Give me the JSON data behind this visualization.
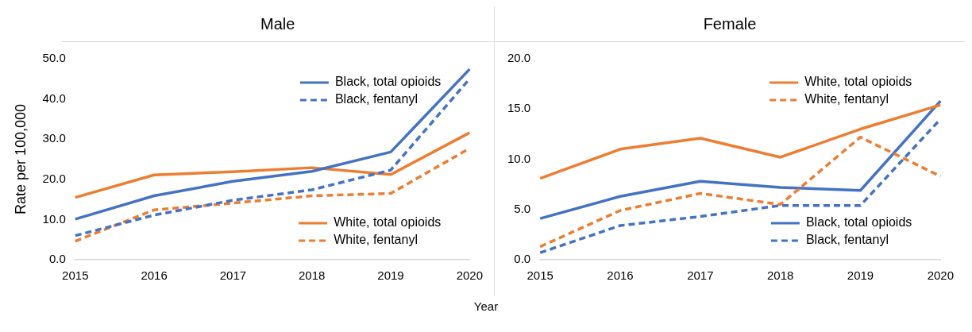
{
  "chart_data": [
    {
      "type": "line",
      "title": "Male",
      "xlabel": "Year",
      "ylabel": "Rate per 100,000",
      "categories": [
        "2015",
        "2016",
        "2017",
        "2018",
        "2019",
        "2020"
      ],
      "ylim": [
        0,
        50
      ],
      "yticks": [
        {
          "value": 0,
          "label": "0.0"
        },
        {
          "value": 10,
          "label": "10.0"
        },
        {
          "value": 20,
          "label": "20.0"
        },
        {
          "value": 30,
          "label": "30.0"
        },
        {
          "value": 40,
          "label": "40.0"
        },
        {
          "value": 50,
          "label": "50.0"
        }
      ],
      "grid": false,
      "legend": "right",
      "marker": "none",
      "series": [
        {
          "name": "Black, total opioids",
          "color": "#4472c4",
          "line_style": "solid",
          "values": [
            10.1,
            15.9,
            19.5,
            22.0,
            26.8,
            47.4
          ]
        },
        {
          "name": "Black, fentanyl",
          "color": "#4472c4",
          "line_style": "dashed",
          "values": [
            6.0,
            11.1,
            14.8,
            17.4,
            22.3,
            45.0
          ]
        },
        {
          "name": "White, total opioids",
          "color": "#ed7d31",
          "line_style": "solid",
          "values": [
            15.5,
            21.1,
            21.9,
            22.9,
            21.2,
            31.6
          ]
        },
        {
          "name": "White, fentanyl",
          "color": "#ed7d31",
          "line_style": "dashed",
          "values": [
            4.6,
            12.4,
            14.1,
            15.9,
            16.5,
            27.7
          ]
        }
      ]
    },
    {
      "type": "line",
      "title": "Female",
      "categories": [
        "2015",
        "2016",
        "2017",
        "2018",
        "2019",
        "2020"
      ],
      "ylim": [
        0,
        20
      ],
      "yticks": [
        {
          "value": 0,
          "label": "0.0"
        },
        {
          "value": 5,
          "label": "5.0"
        },
        {
          "value": 10,
          "label": "10.0"
        },
        {
          "value": 15,
          "label": "15.0"
        },
        {
          "value": 20,
          "label": "20.0"
        }
      ],
      "grid": false,
      "legend": "right",
      "marker": "none",
      "series": [
        {
          "name": "White, total opioids",
          "color": "#ed7d31",
          "line_style": "solid",
          "values": [
            8.1,
            11.0,
            12.1,
            10.2,
            13.0,
            15.4
          ]
        },
        {
          "name": "White, fentanyl",
          "color": "#ed7d31",
          "line_style": "dashed",
          "values": [
            1.3,
            4.9,
            6.6,
            5.5,
            12.2,
            8.3
          ]
        },
        {
          "name": "Black, total opioids",
          "color": "#4472c4",
          "line_style": "solid",
          "values": [
            4.1,
            6.3,
            7.8,
            7.2,
            6.9,
            15.8
          ]
        },
        {
          "name": "Black, fentanyl",
          "color": "#4472c4",
          "line_style": "dashed",
          "values": [
            0.7,
            3.4,
            4.3,
            5.4,
            5.4,
            14.0
          ]
        }
      ]
    }
  ]
}
